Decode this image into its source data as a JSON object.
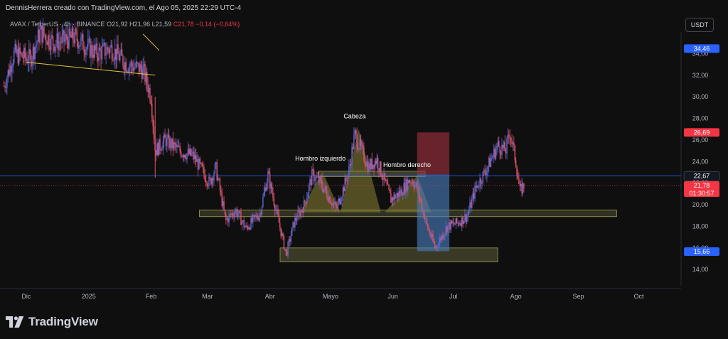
{
  "header": {
    "caption": "DennisHerrera creado con TradingView.com, el Ago 05, 2025 22:29 UTC-4"
  },
  "symbol_line": {
    "pair": "AVAX / TetherUS · 4h · BINANCE",
    "o": "O21,92",
    "h": "H21,96",
    "l": "L21,59",
    "c": "C21,78",
    "change": "−0,14 (−0,64%)"
  },
  "currency_button": "USDT",
  "footer": {
    "brand": "TradingView"
  },
  "colors": {
    "background": "#0f0f0f",
    "candle_up": "#5b6bd8",
    "candle_down": "#e0566a",
    "pattern_fill": "#8a8234",
    "zone_fill": "#5c5c3a",
    "trendline": "#e0c341",
    "target_zone": "#4a7fbf",
    "stop_zone": "#a33040",
    "price_badge_red": "#f23645",
    "price_badge_blue": "#2962ff",
    "horizontal_line_blue": "#2962ff"
  },
  "chart_data": {
    "type": "candlestick",
    "ylim": [
      12.5,
      36
    ],
    "y_ticks": [
      "34,00",
      "32,00",
      "30,00",
      "28,00",
      "26,00",
      "24,00",
      "22,00",
      "20,00",
      "18,00",
      "16,00",
      "14,00"
    ],
    "y_tick_values": [
      34,
      32,
      30,
      28,
      26,
      24,
      22,
      20,
      18,
      16,
      14
    ],
    "x_ticks": [
      "Dic",
      "2025",
      "Feb",
      "Mar",
      "Abr",
      "Mayo",
      "Jun",
      "Jul",
      "Ago",
      "Sep",
      "Oct"
    ],
    "x_tick_dates": [
      "2024-12-01",
      "2025-01-01",
      "2025-02-01",
      "2025-03-01",
      "2025-04-01",
      "2025-05-01",
      "2025-06-01",
      "2025-07-01",
      "2025-08-01",
      "2025-09-01",
      "2025-10-01"
    ],
    "price_path": [
      [
        "2024-11-20",
        31
      ],
      [
        "2024-11-25",
        34
      ],
      [
        "2024-12-03",
        33.5
      ],
      [
        "2024-12-08",
        36
      ],
      [
        "2024-12-15",
        35
      ],
      [
        "2024-12-25",
        35.5
      ],
      [
        "2025-01-05",
        34
      ],
      [
        "2025-01-12",
        34.5
      ],
      [
        "2025-01-20",
        33
      ],
      [
        "2025-01-28",
        32.5
      ],
      [
        "2025-02-01",
        30
      ],
      [
        "2025-02-03",
        25
      ],
      [
        "2025-02-08",
        26
      ],
      [
        "2025-02-15",
        25
      ],
      [
        "2025-02-22",
        24.5
      ],
      [
        "2025-03-02",
        22
      ],
      [
        "2025-03-05",
        23.5
      ],
      [
        "2025-03-10",
        18.5
      ],
      [
        "2025-03-15",
        19.5
      ],
      [
        "2025-03-20",
        17.8
      ],
      [
        "2025-03-27",
        19.2
      ],
      [
        "2025-03-31",
        22.8
      ],
      [
        "2025-04-04",
        19.5
      ],
      [
        "2025-04-09",
        15.4
      ],
      [
        "2025-04-13",
        18.4
      ],
      [
        "2025-04-18",
        20
      ],
      [
        "2025-04-22",
        22.8
      ],
      [
        "2025-04-26",
        22
      ],
      [
        "2025-05-04",
        19.6
      ],
      [
        "2025-05-10",
        23
      ],
      [
        "2025-05-13",
        26.5
      ],
      [
        "2025-05-16",
        25.2
      ],
      [
        "2025-05-20",
        23.5
      ],
      [
        "2025-05-24",
        24.2
      ],
      [
        "2025-05-31",
        20.5
      ],
      [
        "2025-06-05",
        21.2
      ],
      [
        "2025-06-10",
        22.5
      ],
      [
        "2025-06-13",
        21.5
      ],
      [
        "2025-06-18",
        18
      ],
      [
        "2025-06-22",
        16
      ],
      [
        "2025-06-28",
        18
      ],
      [
        "2025-07-03",
        18.3
      ],
      [
        "2025-07-08",
        19
      ],
      [
        "2025-07-12",
        21.5
      ],
      [
        "2025-07-18",
        23.5
      ],
      [
        "2025-07-23",
        25.5
      ],
      [
        "2025-07-27",
        25
      ],
      [
        "2025-07-29",
        26.8
      ],
      [
        "2025-08-01",
        24
      ],
      [
        "2025-08-03",
        21.2
      ],
      [
        "2025-08-05",
        21.8
      ]
    ],
    "annotations": {
      "left_shoulder": "Hombro izquierdo",
      "head": "Cabeza",
      "right_shoulder": "Hombro derecho",
      "neckline_price": 19.2,
      "demand_zone": [
        14.7,
        16
      ],
      "target_zone": [
        15.7,
        22.8
      ],
      "stop_zone": [
        22.8,
        26.7
      ]
    },
    "price_labels": [
      {
        "text": "34,46",
        "value": 34.46,
        "color": "blue"
      },
      {
        "text": "26,69",
        "value": 26.69,
        "color": "red"
      },
      {
        "text": "22,67",
        "value": 22.67,
        "color": "neutral"
      },
      {
        "text": "21,78",
        "sub": "01:30:57",
        "value": 21.78,
        "color": "red"
      },
      {
        "text": "15,66",
        "value": 15.66,
        "color": "blue"
      }
    ],
    "horizontal_lines": [
      {
        "value": 22.67,
        "style": "solid",
        "color": "blue"
      },
      {
        "value": 21.78,
        "style": "dotted",
        "color": "red"
      }
    ]
  }
}
